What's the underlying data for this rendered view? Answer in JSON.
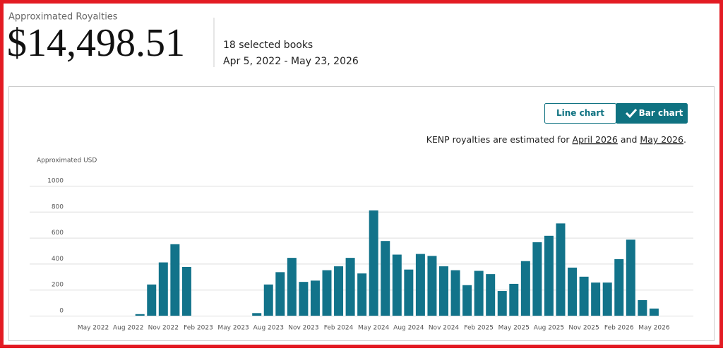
{
  "header": {
    "label": "Approximated Royalties",
    "amount": "$14,498.51",
    "books": "18 selected books",
    "date_range": "Apr 5, 2022 - May 23, 2026"
  },
  "controls": {
    "line_chart": "Line chart",
    "bar_chart": "Bar chart"
  },
  "note": {
    "text": "KENP royalties are estimated for",
    "link1": "April 2026",
    "middle": "and",
    "link2": "May 2026",
    "end": "."
  },
  "chart_data": {
    "type": "bar",
    "y_label": "Approximated USD",
    "categories": [
      null,
      "May 2022",
      null,
      null,
      "Aug 2022",
      null,
      null,
      "Nov 2022",
      null,
      null,
      "Feb 2023",
      null,
      null,
      "May 2023",
      null,
      null,
      "Aug 2023",
      null,
      null,
      "Nov 2023",
      null,
      null,
      "Feb 2024",
      null,
      null,
      "May 2024",
      null,
      null,
      "Aug 2024",
      null,
      null,
      "Nov 2024",
      null,
      null,
      "Feb 2025",
      null,
      null,
      "May 2025",
      null,
      null,
      "Aug 2025",
      null,
      null,
      "Nov 2025",
      null,
      null,
      "Feb 2026",
      null,
      null,
      "May 2026"
    ],
    "values": [
      0,
      0,
      0,
      0,
      0,
      12,
      240,
      410,
      550,
      375,
      0,
      0,
      0,
      0,
      0,
      20,
      240,
      335,
      445,
      260,
      270,
      350,
      380,
      445,
      325,
      810,
      575,
      470,
      355,
      475,
      460,
      380,
      350,
      235,
      345,
      320,
      190,
      245,
      420,
      565,
      615,
      710,
      370,
      300,
      255,
      255,
      435,
      585,
      120,
      55
    ],
    "color": "#12738a",
    "ylim": [
      0,
      1000
    ],
    "yticks": [
      0,
      200,
      400,
      600,
      800,
      1000
    ],
    "grid": true
  }
}
